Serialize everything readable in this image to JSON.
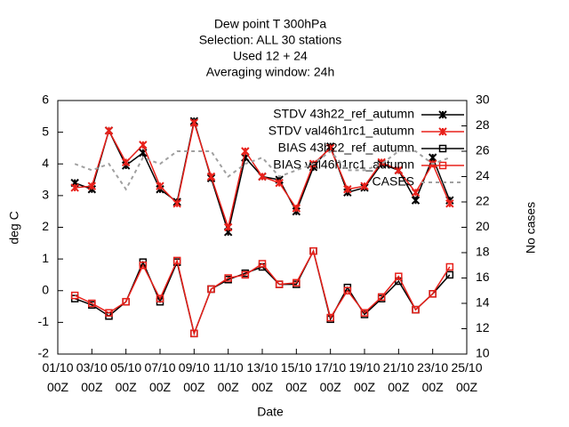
{
  "chart_data": {
    "type": "line",
    "title": [
      "Dew point T 300hPa",
      "Selection: ALL      30 stations",
      "Used  12  + 24",
      "Averaging window: 24h"
    ],
    "xlabel": "Date",
    "ylabel": "deg C",
    "y2label": "No cases",
    "x": [
      2,
      3,
      4,
      5,
      6,
      7,
      8,
      9,
      10,
      11,
      12,
      13,
      14,
      15,
      16,
      17,
      18,
      19,
      20,
      21,
      22,
      23,
      24
    ],
    "xlim": [
      1,
      25
    ],
    "xticks": [
      {
        "value": 1,
        "label": "01/10\n00Z"
      },
      {
        "value": 3,
        "label": "03/10\n00Z"
      },
      {
        "value": 5,
        "label": "05/10\n00Z"
      },
      {
        "value": 7,
        "label": "07/10\n00Z"
      },
      {
        "value": 9,
        "label": "09/10\n00Z"
      },
      {
        "value": 11,
        "label": "11/10\n00Z"
      },
      {
        "value": 13,
        "label": "13/10\n00Z"
      },
      {
        "value": 15,
        "label": "15/10\n00Z"
      },
      {
        "value": 17,
        "label": "17/10\n00Z"
      },
      {
        "value": 19,
        "label": "19/10\n00Z"
      },
      {
        "value": 21,
        "label": "21/10\n00Z"
      },
      {
        "value": 23,
        "label": "23/10\n00Z"
      },
      {
        "value": 25,
        "label": "25/10\n00Z"
      }
    ],
    "ylim": [
      -2,
      6
    ],
    "yticks": [
      -2,
      -1,
      0,
      1,
      2,
      3,
      4,
      5,
      6
    ],
    "y2lim": [
      10,
      30
    ],
    "y2ticks": [
      10,
      12,
      14,
      16,
      18,
      20,
      22,
      24,
      26,
      28,
      30
    ],
    "series": [
      {
        "name": "STDV 43h22_ref_autumn",
        "color": "#000000",
        "marker": "x",
        "values": [
          3.4,
          3.2,
          5.05,
          3.95,
          4.35,
          3.2,
          2.8,
          5.35,
          3.55,
          1.85,
          4.2,
          3.6,
          3.5,
          2.5,
          3.9,
          4.55,
          3.1,
          3.25,
          4.0,
          3.8,
          2.85,
          4.2,
          2.85
        ]
      },
      {
        "name": "STDV val46h1rc1_autumn",
        "color": "#e8201a",
        "marker": "x",
        "values": [
          3.25,
          3.3,
          5.05,
          4.05,
          4.6,
          3.3,
          2.75,
          5.3,
          3.6,
          2.0,
          4.4,
          3.6,
          3.4,
          2.6,
          4.0,
          4.5,
          3.2,
          3.3,
          4.05,
          3.8,
          3.1,
          4.0,
          2.75
        ]
      },
      {
        "name": "BIAS 43h22_ref_autumn",
        "color": "#000000",
        "marker": "square",
        "values": [
          -0.25,
          -0.45,
          -0.8,
          -0.35,
          0.9,
          -0.35,
          0.9,
          -1.35,
          0.05,
          0.35,
          0.55,
          0.75,
          0.2,
          0.2,
          1.25,
          -0.9,
          0.1,
          -0.75,
          -0.25,
          0.3,
          -0.6,
          -0.1,
          0.5
        ]
      },
      {
        "name": "BIAS val46h1rc1_autumn",
        "color": "#e8201a",
        "marker": "square",
        "values": [
          -0.15,
          -0.4,
          -0.7,
          -0.35,
          0.8,
          -0.25,
          0.95,
          -1.35,
          0.05,
          0.4,
          0.5,
          0.85,
          0.2,
          0.25,
          1.25,
          -0.85,
          0.0,
          -0.7,
          -0.2,
          0.45,
          -0.6,
          -0.1,
          0.75
        ]
      },
      {
        "name": "CASES",
        "color": "#a0a0a0",
        "marker": "none",
        "axis": "y2",
        "values": [
          25,
          24.5,
          25,
          23,
          25.5,
          25,
          26,
          26,
          26,
          24,
          25,
          25.5,
          24,
          24.5,
          25,
          26,
          24.5,
          24.5,
          25,
          26,
          26,
          25,
          25.5
        ]
      }
    ]
  }
}
